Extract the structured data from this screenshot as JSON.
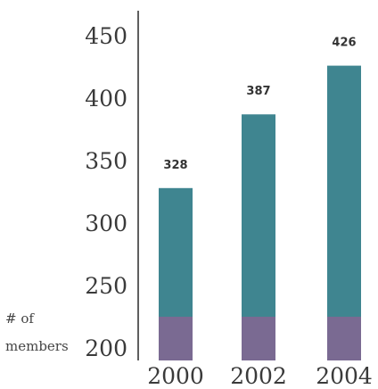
{
  "chart_data": {
    "type": "bar",
    "categories": [
      "2000",
      "2002",
      "2004"
    ],
    "values": [
      328,
      387,
      426
    ],
    "data_labels": [
      "328",
      "387",
      "426"
    ],
    "ylabel_lines": [
      "# of",
      "members"
    ],
    "yticks": [
      "200",
      "250",
      "300",
      "350",
      "400",
      "450"
    ],
    "ylim": [
      200,
      450
    ],
    "grid": false,
    "colors": {
      "bar_top": "#3f8590",
      "bar_base": "#7a6a92"
    }
  }
}
